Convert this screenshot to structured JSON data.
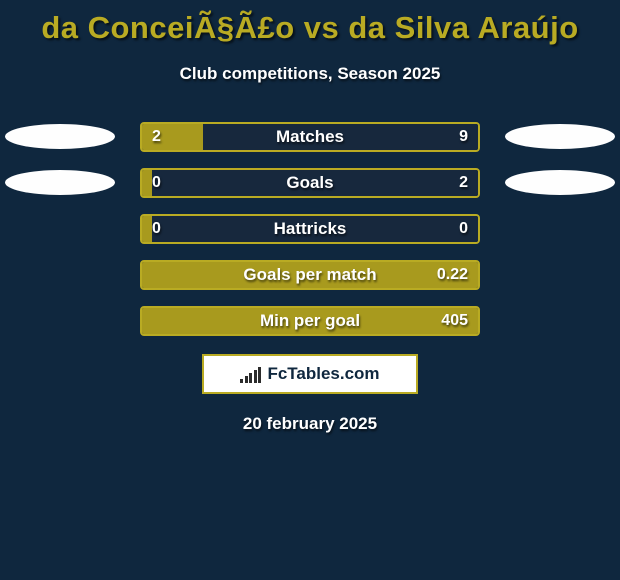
{
  "colors": {
    "background": "#0f273e",
    "title": "#b9ab23",
    "text": "#ffffff",
    "fill_left": "#a89a1e",
    "fill_right": "#17283d",
    "border": "#b9ab23",
    "avatar": "#fefefe",
    "logo_bg": "#ffffff",
    "logo_border": "#b9ab23",
    "logo_text": "#0f273e",
    "logo_bar": "#2b2b2b"
  },
  "title": "da ConceiÃ§Ã£o vs da Silva Araújo",
  "subtitle": "Club competitions, Season 2025",
  "logo_text": "FcTables.com",
  "footer_date": "20 february 2025",
  "rows": [
    {
      "label": "Matches",
      "left_val": "2",
      "right_val": "9",
      "left_pct": 18.2,
      "show_avatar": true
    },
    {
      "label": "Goals",
      "left_val": "0",
      "right_val": "2",
      "left_pct": 3.0,
      "show_avatar": true
    },
    {
      "label": "Hattricks",
      "left_val": "0",
      "right_val": "0",
      "left_pct": 3.0,
      "show_avatar": false
    },
    {
      "label": "Goals per match",
      "left_val": "",
      "right_val": "0.22",
      "left_pct": 100.0,
      "show_avatar": false
    },
    {
      "label": "Min per goal",
      "left_val": "",
      "right_val": "405",
      "left_pct": 100.0,
      "show_avatar": false
    }
  ],
  "logo_bars_heights": [
    4,
    7,
    10,
    13,
    16
  ]
}
